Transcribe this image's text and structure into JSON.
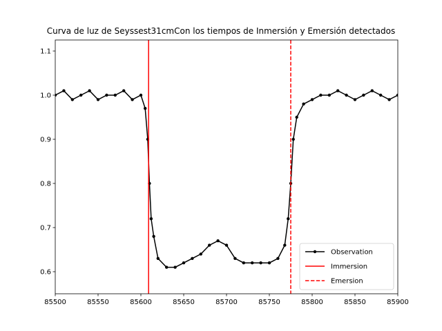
{
  "chart_data": {
    "type": "line",
    "title": "Curva de luz de Seyssest31cmCon los tiempos de Inmersión y Emersión detectados",
    "xlabel": "",
    "ylabel": "",
    "xlim": [
      85500,
      85900
    ],
    "ylim": [
      0.55,
      1.125
    ],
    "x_ticks": [
      85500,
      85550,
      85600,
      85650,
      85700,
      85750,
      85800,
      85850,
      85900
    ],
    "y_ticks": [
      0.6,
      0.7,
      0.8,
      0.9,
      1.0,
      1.1
    ],
    "grid": false,
    "legend_position": "lower-right",
    "series": [
      {
        "name": "Observation",
        "style": "line-with-dots",
        "color": "#000000",
        "x": [
          85500,
          85510,
          85520,
          85530,
          85540,
          85550,
          85560,
          85570,
          85580,
          85590,
          85600,
          85605,
          85608,
          85610,
          85612,
          85615,
          85620,
          85630,
          85640,
          85650,
          85660,
          85670,
          85680,
          85690,
          85700,
          85710,
          85720,
          85730,
          85740,
          85750,
          85760,
          85768,
          85772,
          85775,
          85778,
          85782,
          85790,
          85800,
          85810,
          85820,
          85830,
          85840,
          85850,
          85860,
          85870,
          85880,
          85890,
          85900
        ],
        "y": [
          1.0,
          1.01,
          0.99,
          1.0,
          1.01,
          0.99,
          1.0,
          1.0,
          1.01,
          0.99,
          1.0,
          0.97,
          0.9,
          0.8,
          0.72,
          0.68,
          0.63,
          0.61,
          0.61,
          0.62,
          0.63,
          0.64,
          0.66,
          0.67,
          0.66,
          0.63,
          0.62,
          0.62,
          0.62,
          0.62,
          0.63,
          0.66,
          0.72,
          0.8,
          0.9,
          0.95,
          0.98,
          0.99,
          1.0,
          1.0,
          1.01,
          1.0,
          0.99,
          1.0,
          1.01,
          1.0,
          0.99,
          1.0
        ]
      },
      {
        "name": "Immersion",
        "style": "solid-vertical",
        "color": "#ff0000",
        "x": [
          85609
        ]
      },
      {
        "name": "Emersion",
        "style": "dashed-vertical",
        "color": "#ff0000",
        "x": [
          85775
        ]
      }
    ]
  }
}
